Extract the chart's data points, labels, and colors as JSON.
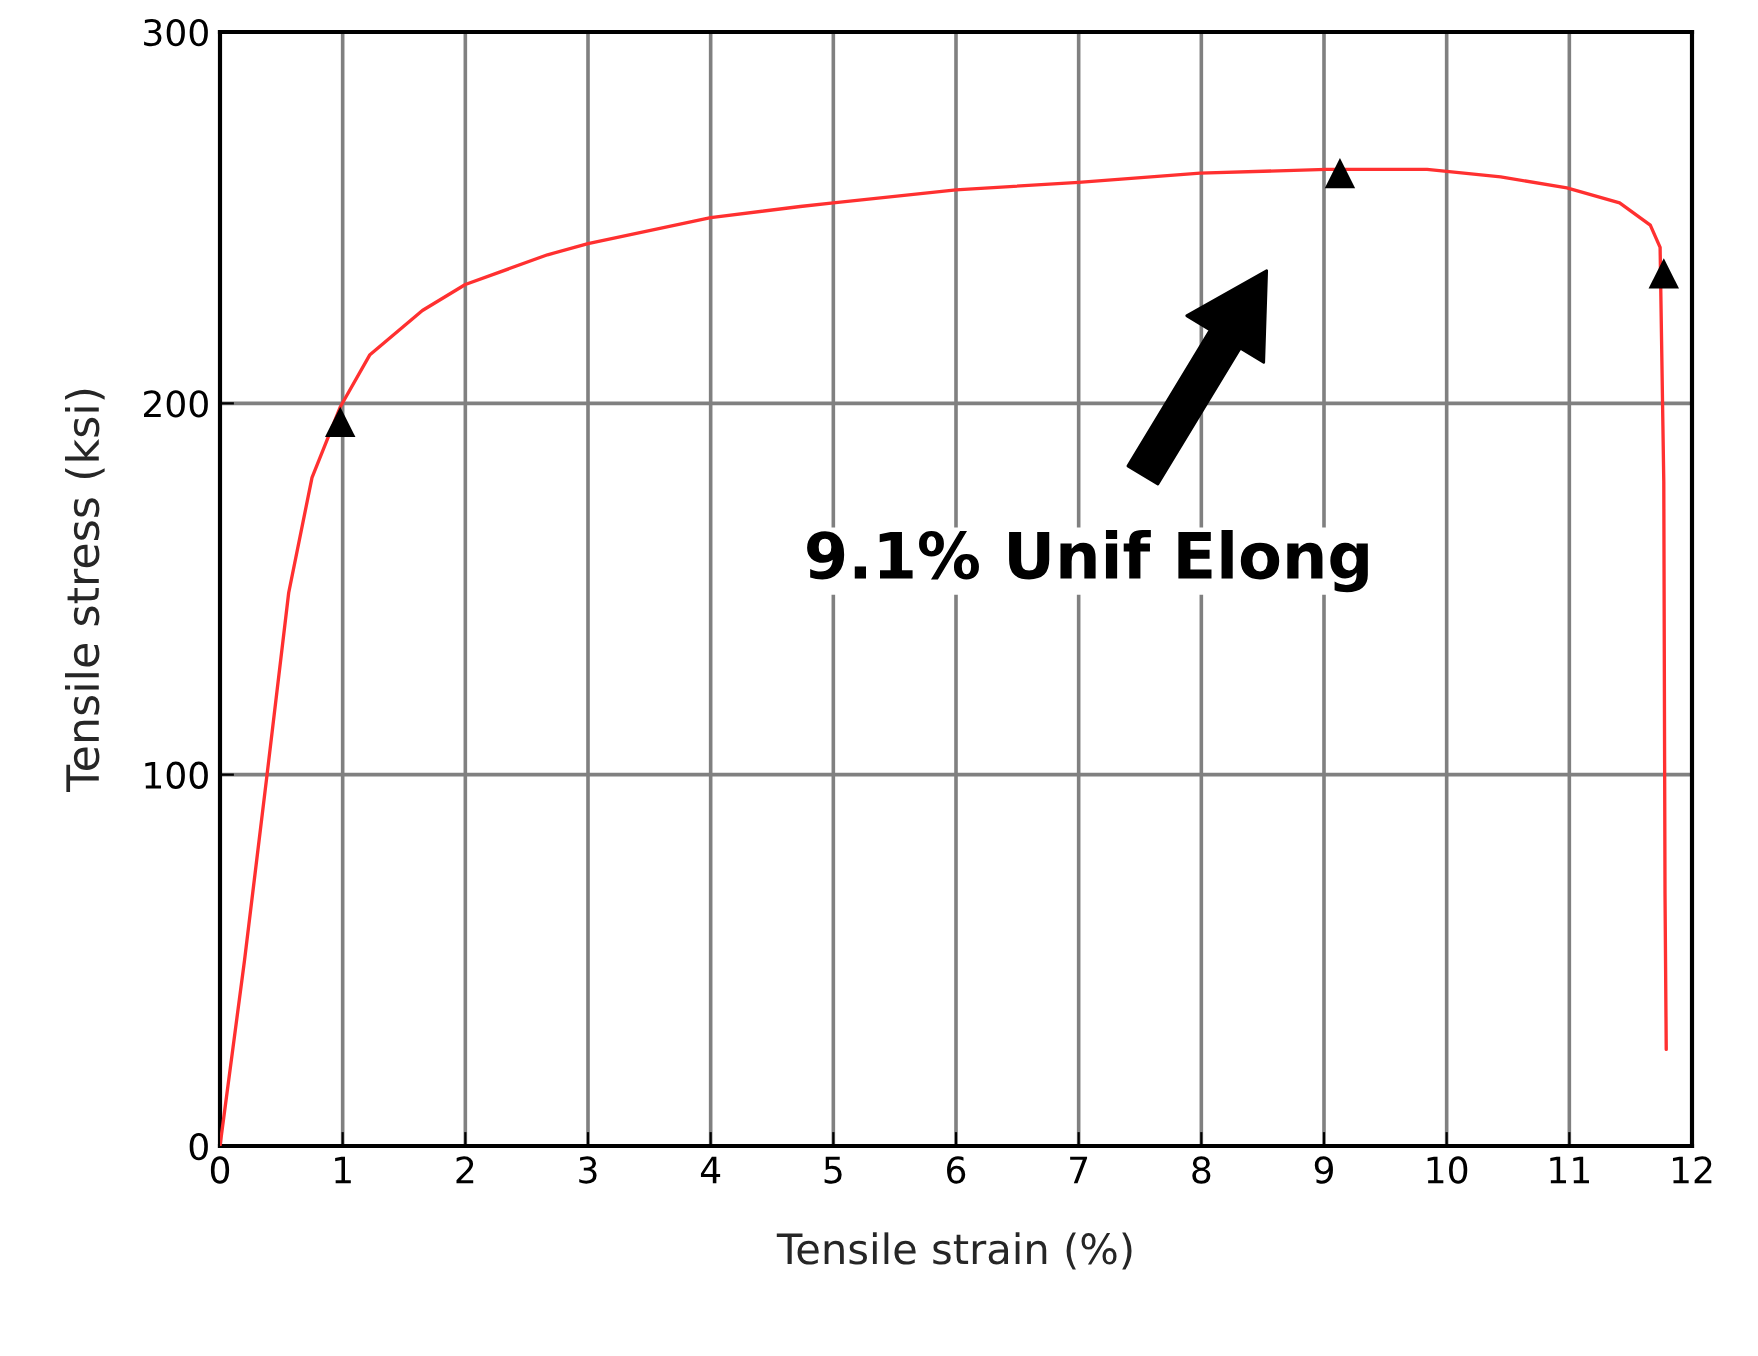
{
  "chart_data": {
    "type": "line",
    "xlabel": "Tensile strain (%)",
    "ylabel": "Tensile stress (ksi)",
    "xlim": [
      0,
      12
    ],
    "ylim": [
      0,
      300
    ],
    "xticks": [
      0,
      1,
      2,
      3,
      4,
      5,
      6,
      7,
      8,
      9,
      10,
      11,
      12
    ],
    "yticks": [
      0,
      100,
      200,
      300
    ],
    "grid": true,
    "line_style": "solid",
    "marker": "none",
    "series": [
      {
        "color": "#ff3030",
        "x": [
          0,
          0.2,
          0.38,
          0.56,
          0.75,
          0.98,
          1.22,
          1.65,
          2.0,
          2.67,
          3.0,
          4.0,
          4.73,
          5.0,
          6.0,
          7.0,
          7.99,
          9.02,
          9.84,
          10.44,
          10.98,
          11.41,
          11.66,
          11.74,
          11.77,
          11.78,
          11.79
        ],
        "values": [
          0,
          50,
          99,
          149,
          180,
          199,
          213,
          225,
          232,
          240,
          243,
          250,
          253,
          254,
          257.5,
          259.5,
          262,
          263,
          263,
          261,
          258,
          254,
          248,
          242,
          179,
          68,
          26
        ]
      },
      {
        "type": "scatter",
        "color": "#000000",
        "marker": "triangle",
        "x": [
          0.98,
          9.13,
          11.77
        ],
        "values": [
          195,
          262,
          235
        ]
      }
    ],
    "annotations": [
      "9.1% Unif Elong"
    ]
  }
}
